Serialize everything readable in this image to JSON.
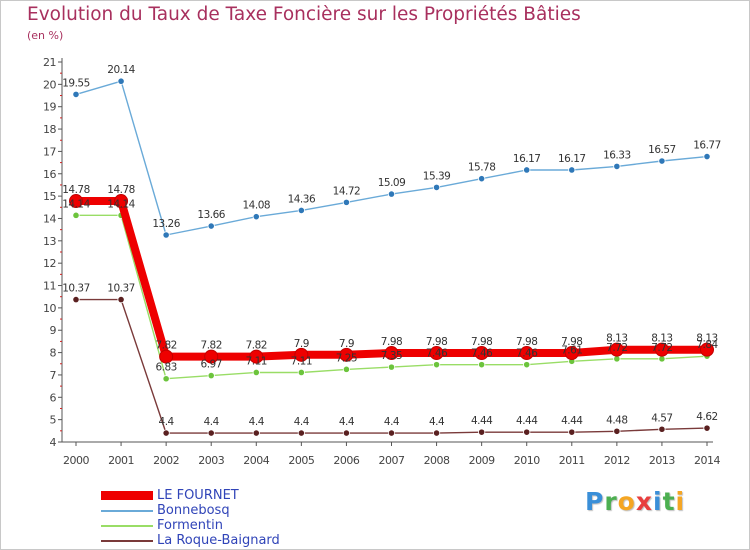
{
  "header": {
    "title": "Evolution du Taux de Taxe Foncière sur les Propriétés Bâties",
    "subtitle": "(en %)"
  },
  "brand": {
    "letters": [
      "P",
      "r",
      "o",
      "x",
      "i",
      "t",
      "i"
    ],
    "colors": [
      "#3a8fd8",
      "#4caf50",
      "#f5a623",
      "#e83e3e",
      "#3a8fd8",
      "#4caf50",
      "#f5a623"
    ]
  },
  "chart_data": {
    "type": "line",
    "title": "Evolution du Taux de Taxe Foncière sur les Propriétés Bâties",
    "ylabel": "(en %)",
    "xlabel": "",
    "x": [
      "2000",
      "2001",
      "2002",
      "2003",
      "2004",
      "2005",
      "2006",
      "2007",
      "2008",
      "2009",
      "2010",
      "2011",
      "2012",
      "2013",
      "2014"
    ],
    "ylim": [
      4,
      21
    ],
    "yticks": [
      "4",
      "5",
      "6",
      "7",
      "8",
      "9",
      "10",
      "11",
      "12",
      "13",
      "14",
      "15",
      "16",
      "17",
      "18",
      "19",
      "20",
      "21"
    ],
    "grid": false,
    "legend": "bottom-left",
    "series": [
      {
        "name": "LE FOURNET",
        "color": "#ee0000",
        "marker": "#ee0000",
        "values": [
          14.78,
          14.78,
          7.82,
          7.82,
          7.82,
          7.9,
          7.9,
          7.98,
          7.98,
          7.98,
          7.98,
          7.98,
          8.13,
          8.13,
          8.13
        ],
        "labels": [
          "14.78",
          "14.78",
          "7.82",
          "7.82",
          "7.82",
          "7.9",
          "7.9",
          "7.98",
          "7.98",
          "7.98",
          "7.98",
          "7.98",
          "8.13",
          "8.13",
          "8.13"
        ]
      },
      {
        "name": "Bonnebosq",
        "color": "#6aaad8",
        "marker": "#2f78b8",
        "values": [
          19.55,
          20.14,
          13.26,
          13.66,
          14.08,
          14.36,
          14.72,
          15.09,
          15.39,
          15.78,
          16.17,
          16.17,
          16.33,
          16.57,
          16.77
        ],
        "labels": [
          "19.55",
          "20.14",
          "13.26",
          "13.66",
          "14.08",
          "14.36",
          "14.72",
          "15.09",
          "15.39",
          "15.78",
          "16.17",
          "16.17",
          "16.33",
          "16.57",
          "16.77"
        ]
      },
      {
        "name": "Formentin",
        "color": "#99dd66",
        "marker": "#6cc43c",
        "values": [
          14.14,
          14.14,
          6.83,
          6.97,
          7.11,
          7.11,
          7.25,
          7.35,
          7.46,
          7.46,
          7.46,
          7.61,
          7.72,
          7.72,
          7.84
        ],
        "labels": [
          "14.14",
          "14.14",
          "6.83",
          "6.97",
          "7.11",
          "7.11",
          "7.25",
          "7.35",
          "7.46",
          "7.46",
          "7.46",
          "7.61",
          "7.72",
          "7.72",
          "7.84"
        ]
      },
      {
        "name": "La Roque-Baignard",
        "color": "#7a3a3a",
        "marker": "#5a2020",
        "values": [
          10.37,
          10.37,
          4.4,
          4.4,
          4.4,
          4.4,
          4.4,
          4.4,
          4.4,
          4.44,
          4.44,
          4.44,
          4.48,
          4.57,
          4.62
        ],
        "labels": [
          "10.37",
          "10.37",
          "4.4",
          "4.4",
          "4.4",
          "4.4",
          "4.4",
          "4.4",
          "4.4",
          "4.44",
          "4.44",
          "4.44",
          "4.48",
          "4.57",
          "4.62"
        ]
      }
    ]
  }
}
